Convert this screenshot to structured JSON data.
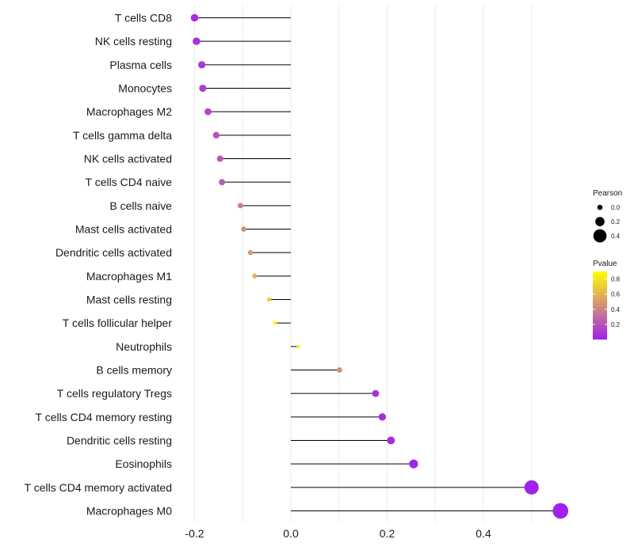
{
  "chart_data": {
    "type": "lollipop",
    "title": "",
    "xlabel": "",
    "ylabel": "",
    "xlim": [
      -0.2,
      0.56
    ],
    "x_ticks": [
      -0.2,
      0.0,
      0.2,
      0.4
    ],
    "x_tick_labels": [
      "-0.2",
      "0.0",
      "0.2",
      "0.4"
    ],
    "grid": true,
    "categories": [
      "T cells CD8",
      "NK cells resting",
      "Plasma cells",
      "Monocytes",
      "Macrophages M2",
      "T cells gamma delta",
      "NK cells activated",
      "T cells CD4 naive",
      "B cells naive",
      "Mast cells activated",
      "Dendritic cells activated",
      "Macrophages M1",
      "Mast cells resting",
      "T cells follicular helper",
      "Neutrophils",
      "B cells memory",
      "T cells regulatory  Tregs ",
      "T cells CD4 memory resting",
      "Dendritic cells resting",
      "Eosinophils",
      "T cells CD4 memory activated",
      "Macrophages M0"
    ],
    "pearson": [
      -0.2,
      -0.196,
      -0.185,
      -0.183,
      -0.172,
      -0.155,
      -0.147,
      -0.143,
      -0.105,
      -0.098,
      -0.084,
      -0.075,
      -0.045,
      -0.033,
      0.016,
      0.101,
      0.176,
      0.19,
      0.208,
      0.255,
      0.5,
      0.56
    ],
    "pvalue": [
      0.05,
      0.06,
      0.1,
      0.12,
      0.16,
      0.2,
      0.22,
      0.25,
      0.4,
      0.45,
      0.5,
      0.6,
      0.7,
      0.85,
      0.95,
      0.45,
      0.08,
      0.05,
      0.05,
      0.02,
      0.01,
      0.001
    ],
    "legend_size": {
      "title": "Pearson",
      "labels": [
        "0.0",
        "0.2",
        "0.4"
      ],
      "values": [
        0.0,
        0.2,
        0.4
      ]
    },
    "legend_color": {
      "title": "Pvalue",
      "labels": [
        "0.8",
        "0.6",
        "0.4",
        "0.2"
      ],
      "values": [
        0.8,
        0.6,
        0.4,
        0.2
      ],
      "range": [
        0.0,
        0.9
      ],
      "low_color": "#a020f0",
      "high_color": "#ffff00"
    },
    "legend_position": "right"
  }
}
